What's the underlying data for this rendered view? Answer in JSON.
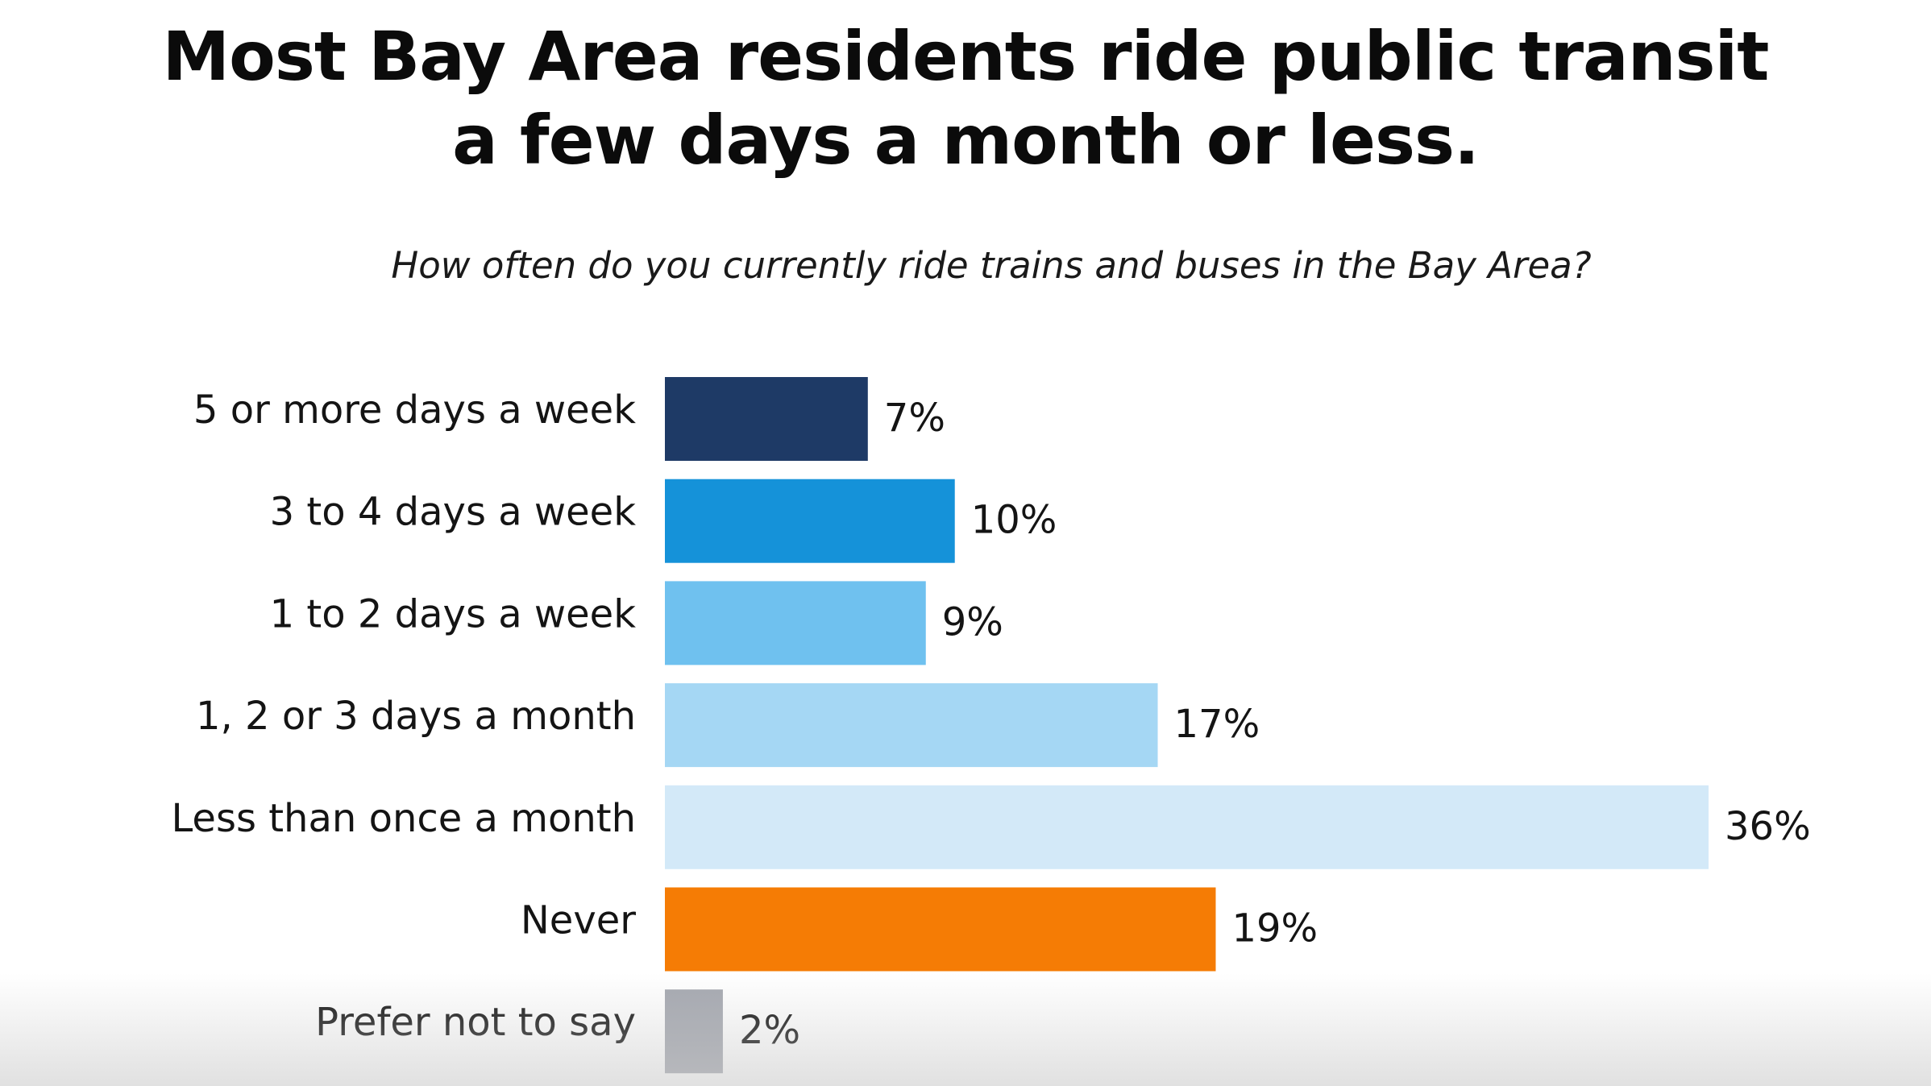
{
  "title_lines": [
    "Most Bay Area residents ride public transit",
    "a few days a month or less."
  ],
  "chart_data": {
    "type": "bar",
    "orientation": "horizontal",
    "subtitle": "How often do you currently ride trains and buses in the Bay Area?",
    "categories": [
      "5 or more days a week",
      "3 to 4 days a week",
      "1 to 2 days a week",
      "1, 2 or 3 days a month",
      "Less than once a month",
      "Never",
      "Prefer not to say"
    ],
    "values": [
      7,
      10,
      9,
      17,
      36,
      19,
      2
    ],
    "value_labels": [
      "7%",
      "10%",
      "9%",
      "17%",
      "36%",
      "19%",
      "2%"
    ],
    "colors": [
      "#1e3a66",
      "#1592d9",
      "#6fc1ef",
      "#a5d7f4",
      "#d3e9f8",
      "#f57c05",
      "#a5a8b0"
    ],
    "unit": "%",
    "xlim": [
      0,
      36
    ],
    "grid": false,
    "legend": "none",
    "xlabel": "",
    "ylabel": ""
  }
}
